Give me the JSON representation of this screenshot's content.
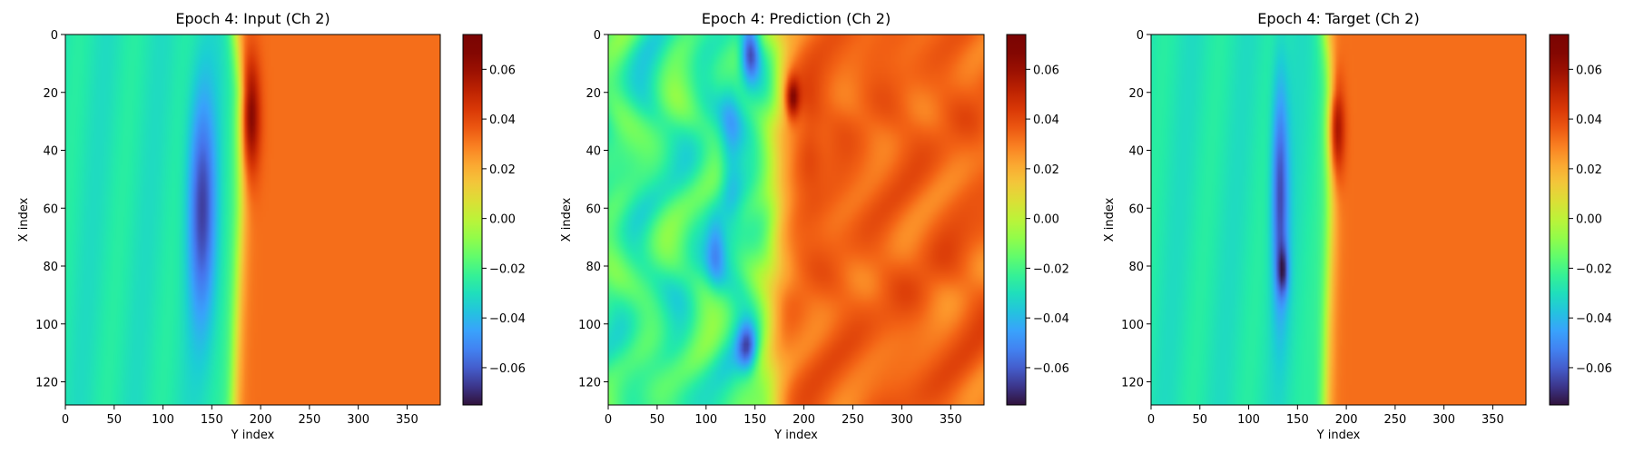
{
  "chart_data": [
    {
      "type": "heatmap",
      "title": "Epoch 4: Input (Ch 2)",
      "xlabel": "Y index",
      "ylabel": "X index",
      "xticks": [
        0,
        50,
        100,
        150,
        200,
        250,
        300,
        350
      ],
      "yticks": [
        0,
        20,
        40,
        60,
        80,
        100,
        120
      ],
      "xlim": [
        0,
        384
      ],
      "ylim": [
        128,
        0
      ],
      "colormap": "turbo",
      "colorbar": {
        "vmin": -0.075,
        "vmax": 0.074,
        "ticks": [
          "0.06",
          "0.04",
          "0.02",
          "0.00",
          "−0.02",
          "−0.04",
          "−0.06"
        ],
        "tick_values": [
          0.06,
          0.04,
          0.02,
          0.0,
          -0.02,
          -0.04,
          -0.06
        ]
      },
      "field": {
        "left_value": -0.028,
        "right_value": 0.032,
        "front_y": [
          [
            0,
            175
          ],
          [
            20,
            182
          ],
          [
            60,
            180
          ],
          [
            100,
            175
          ],
          [
            128,
            172
          ]
        ],
        "front_width": 4,
        "features": [
          {
            "type": "low",
            "y": 140,
            "x": 60,
            "sy": 10,
            "sx": 28,
            "amplitude": -0.035
          },
          {
            "type": "high",
            "y": 189,
            "x": 28,
            "sy": 7,
            "sx": 14,
            "amplitude": 0.038
          }
        ]
      }
    },
    {
      "type": "heatmap",
      "title": "Epoch 4: Prediction (Ch 2)",
      "xlabel": "Y index",
      "ylabel": "X index",
      "xticks": [
        0,
        50,
        100,
        150,
        200,
        250,
        300,
        350
      ],
      "yticks": [
        0,
        20,
        40,
        60,
        80,
        100,
        120
      ],
      "xlim": [
        0,
        384
      ],
      "ylim": [
        128,
        0
      ],
      "colormap": "turbo",
      "colorbar": {
        "vmin": -0.075,
        "vmax": 0.074,
        "ticks": [
          "0.06",
          "0.04",
          "0.02",
          "0.00",
          "−0.02",
          "−0.04",
          "−0.06"
        ],
        "tick_values": [
          0.06,
          0.04,
          0.02,
          0.0,
          -0.02,
          -0.04,
          -0.06
        ]
      },
      "field": {
        "left_value": -0.022,
        "right_value": 0.034,
        "front_y": [
          [
            0,
            172
          ],
          [
            30,
            176
          ],
          [
            70,
            170
          ],
          [
            110,
            166
          ],
          [
            128,
            168
          ]
        ],
        "front_width": 7,
        "noise": 0.012,
        "features": [
          {
            "type": "low",
            "y": 145,
            "x": 6,
            "sy": 7,
            "sx": 7,
            "amplitude": -0.05
          },
          {
            "type": "low",
            "y": 125,
            "x": 40,
            "sy": 8,
            "sx": 20,
            "amplitude": -0.018
          },
          {
            "type": "low",
            "y": 110,
            "x": 75,
            "sy": 7,
            "sx": 9,
            "amplitude": -0.022
          },
          {
            "type": "low",
            "y": 142,
            "x": 108,
            "sy": 7,
            "sx": 6,
            "amplitude": -0.035
          },
          {
            "type": "high",
            "y": 188,
            "x": 22,
            "sy": 5,
            "sx": 5,
            "amplitude": 0.035
          },
          {
            "type": "high",
            "y": 205,
            "x": 38,
            "sy": 10,
            "sx": 12,
            "amplitude": 0.01
          }
        ]
      }
    },
    {
      "type": "heatmap",
      "title": "Epoch 4: Target (Ch 2)",
      "xlabel": "Y index",
      "ylabel": "X index",
      "xticks": [
        0,
        50,
        100,
        150,
        200,
        250,
        300,
        350
      ],
      "yticks": [
        0,
        20,
        40,
        60,
        80,
        100,
        120
      ],
      "xlim": [
        0,
        384
      ],
      "ylim": [
        128,
        0
      ],
      "colormap": "turbo",
      "colorbar": {
        "vmin": -0.075,
        "vmax": 0.074,
        "ticks": [
          "0.06",
          "0.04",
          "0.02",
          "0.00",
          "−0.02",
          "−0.04",
          "−0.06"
        ],
        "tick_values": [
          0.06,
          0.04,
          0.02,
          0.0,
          -0.02,
          -0.04,
          -0.06
        ]
      },
      "field": {
        "left_value": -0.028,
        "right_value": 0.032,
        "front_y": [
          [
            0,
            180
          ],
          [
            20,
            187
          ],
          [
            60,
            184
          ],
          [
            100,
            180
          ],
          [
            128,
            178
          ]
        ],
        "front_width": 4,
        "features": [
          {
            "type": "low",
            "y": 132,
            "x": 55,
            "sy": 6,
            "sx": 28,
            "amplitude": -0.035
          },
          {
            "type": "low",
            "y": 135,
            "x": 82,
            "sy": 4,
            "sx": 6,
            "amplitude": -0.025
          },
          {
            "type": "high",
            "y": 189,
            "x": 32,
            "sy": 6,
            "sx": 12,
            "amplitude": 0.04
          }
        ]
      }
    }
  ]
}
